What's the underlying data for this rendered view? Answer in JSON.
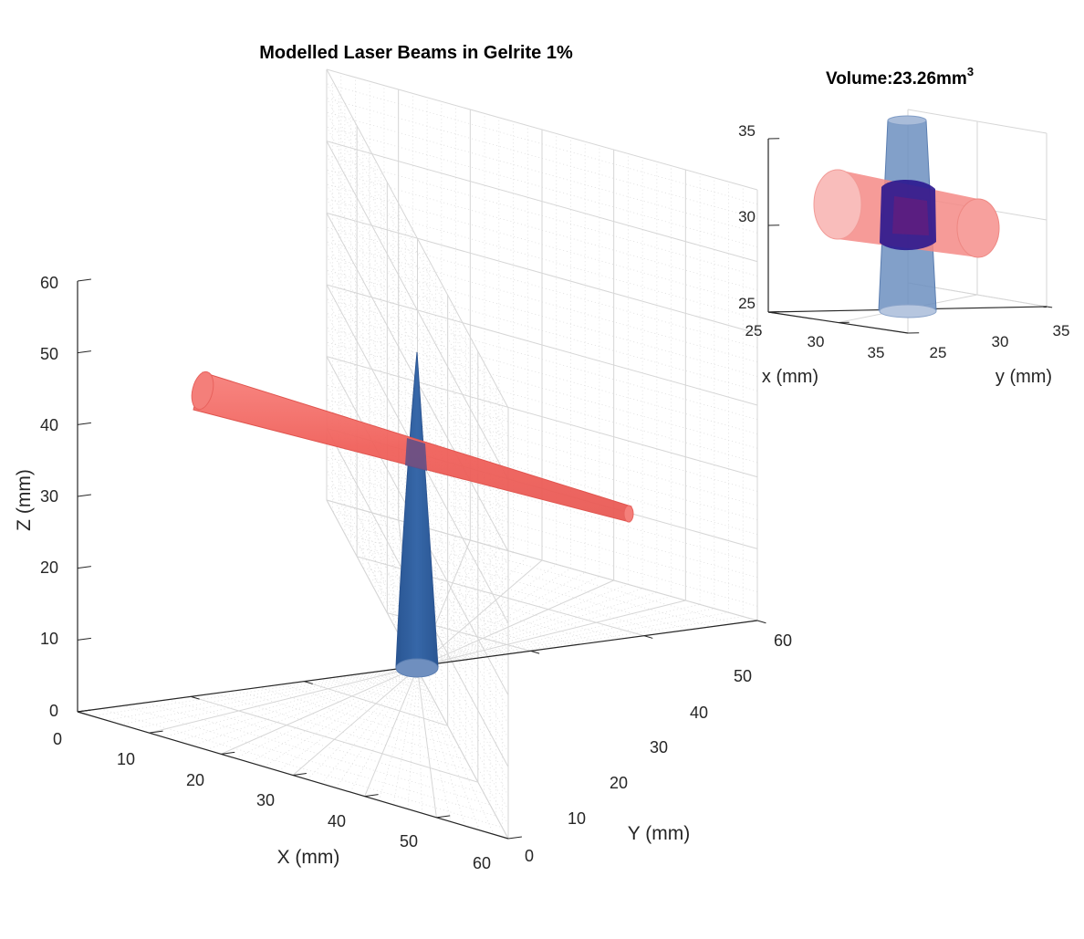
{
  "chart_data": [
    {
      "type": "3d-surface",
      "title": "Modelled Laser Beams in Gelrite 1%",
      "xlabel": "X (mm)",
      "ylabel": "Y (mm)",
      "zlabel": "Z (mm)",
      "xlim": [
        0,
        60
      ],
      "ylim": [
        0,
        60
      ],
      "zlim": [
        0,
        60
      ],
      "xticks": [
        "0",
        "10",
        "20",
        "30",
        "40",
        "50",
        "60"
      ],
      "yticks": [
        "0",
        "10",
        "20",
        "30",
        "40",
        "50",
        "60"
      ],
      "zticks": [
        "0",
        "10",
        "20",
        "30",
        "40",
        "50",
        "60"
      ],
      "grid": true,
      "minor_grid": true,
      "series": [
        {
          "name": "red beam",
          "color": "#f0605a",
          "axis": "horizontal",
          "from": [
            6,
            30,
            44
          ],
          "to": [
            60,
            30,
            17
          ],
          "radius_start": 2.6,
          "radius_end": 1.0
        },
        {
          "name": "blue beam",
          "color": "#2f5d9b",
          "axis": "vertical",
          "from": [
            30,
            30,
            5
          ],
          "to": [
            30,
            30,
            50
          ],
          "radius_start": 3.0,
          "radius_end": 0.3
        }
      ]
    },
    {
      "type": "3d-surface",
      "title": "Volume:23.26mm",
      "title_superscript": "3",
      "xlabel": "x (mm)",
      "ylabel": "y (mm)",
      "xlim": [
        25,
        35
      ],
      "ylim": [
        25,
        35
      ],
      "zlim": [
        25,
        35
      ],
      "xticks": [
        "25",
        "30",
        "35"
      ],
      "yticks": [
        "25",
        "30",
        "35"
      ],
      "zticks": [
        "25",
        "30",
        "35"
      ],
      "grid": true,
      "series": [
        {
          "name": "red beam (zoom)",
          "color": "#f48a86"
        },
        {
          "name": "blue beam (zoom)",
          "color": "#6c8fbf"
        },
        {
          "name": "intersection volume",
          "color": "#2a178f"
        }
      ]
    }
  ]
}
